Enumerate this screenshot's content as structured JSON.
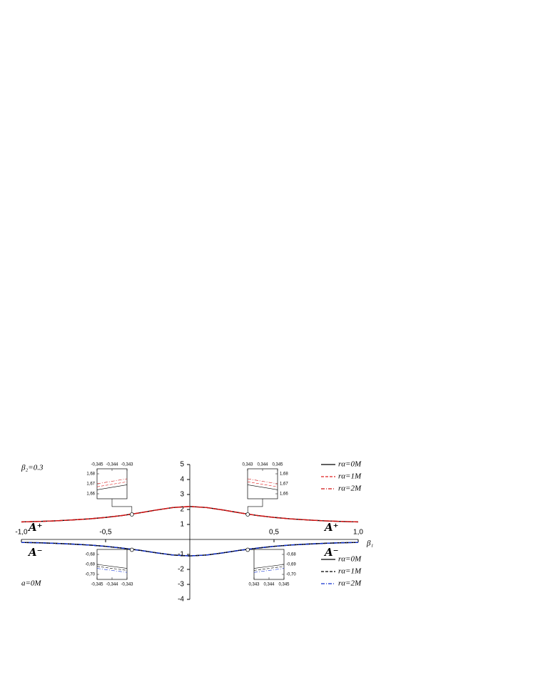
{
  "chart_data": [
    {
      "type": "line",
      "xlabel": "β₁",
      "annotations": {
        "beta2": "β₂=0.3",
        "spin": "a=0M",
        "upper": "A⁺",
        "lower": "A⁻"
      },
      "x": [
        -1,
        -0.9,
        -0.8,
        -0.7,
        -0.6,
        -0.5,
        -0.4,
        -0.3,
        -0.2,
        -0.1,
        0,
        0.1,
        0.2,
        0.3,
        0.4,
        0.5,
        0.6,
        0.7,
        0.8,
        0.9,
        1
      ],
      "series": [
        {
          "name": "rα=0M",
          "color": "#000000",
          "dash": "solid",
          "values": [
            1.17,
            1.2,
            1.24,
            1.3,
            1.37,
            1.47,
            1.6,
            1.77,
            1.96,
            2.13,
            2.2,
            2.13,
            1.96,
            1.77,
            1.6,
            1.47,
            1.37,
            1.3,
            1.24,
            1.2,
            1.17
          ]
        },
        {
          "name": "rα=1M",
          "color": "#e02020",
          "dash": "dashed",
          "values": [
            1.17,
            1.2,
            1.24,
            1.3,
            1.37,
            1.47,
            1.6,
            1.77,
            1.96,
            2.13,
            2.2,
            2.13,
            1.96,
            1.77,
            1.6,
            1.47,
            1.37,
            1.3,
            1.24,
            1.2,
            1.17
          ]
        },
        {
          "name": "rα=2M",
          "color": "#d01010",
          "dash": "dashdot",
          "values": [
            1.17,
            1.2,
            1.24,
            1.3,
            1.37,
            1.47,
            1.6,
            1.77,
            1.96,
            2.13,
            2.2,
            2.13,
            1.96,
            1.77,
            1.6,
            1.47,
            1.37,
            1.3,
            1.24,
            1.2,
            1.17
          ]
        },
        {
          "name": "rα=0M",
          "color": "#000000",
          "dash": "solid",
          "values": [
            -0.2,
            -0.22,
            -0.26,
            -0.31,
            -0.37,
            -0.46,
            -0.58,
            -0.72,
            -0.89,
            -1.04,
            -1.1,
            -1.04,
            -0.89,
            -0.72,
            -0.58,
            -0.46,
            -0.37,
            -0.31,
            -0.26,
            -0.22,
            -0.2
          ]
        },
        {
          "name": "rα=1M",
          "color": "#000000",
          "dash": "dashed",
          "values": [
            -0.2,
            -0.22,
            -0.26,
            -0.31,
            -0.37,
            -0.46,
            -0.58,
            -0.72,
            -0.89,
            -1.04,
            -1.1,
            -1.04,
            -0.89,
            -0.72,
            -0.58,
            -0.46,
            -0.37,
            -0.31,
            -0.26,
            -0.22,
            -0.2
          ]
        },
        {
          "name": "rα=2M",
          "color": "#1030d0",
          "dash": "dashdot",
          "values": [
            -0.2,
            -0.22,
            -0.26,
            -0.31,
            -0.37,
            -0.46,
            -0.58,
            -0.72,
            -0.89,
            -1.04,
            -1.1,
            -1.04,
            -0.89,
            -0.72,
            -0.58,
            -0.46,
            -0.37,
            -0.31,
            -0.26,
            -0.22,
            -0.2
          ]
        }
      ],
      "circles": [
        {
          "x": -0.344,
          "y": 1.67
        },
        {
          "x": 0.344,
          "y": 1.67
        },
        {
          "x": -0.344,
          "y": -0.69
        },
        {
          "x": 0.344,
          "y": -0.69
        }
      ],
      "xlim": [
        -1,
        1
      ],
      "ylim": [
        -4,
        5
      ],
      "xticks": [
        {
          "value": -1,
          "label": "-1,0"
        },
        {
          "value": -0.5,
          "label": "-0,5"
        },
        {
          "value": 0.5,
          "label": "0,5"
        },
        {
          "value": 1,
          "label": "1,0"
        }
      ],
      "yticks": [
        5,
        4,
        3,
        2,
        1,
        -1,
        -2,
        -3,
        -4
      ]
    },
    {
      "type": "line",
      "x": [
        -0.345,
        -0.343
      ],
      "xlim": [
        -0.345,
        -0.343
      ],
      "ylim": [
        1.655,
        1.685
      ],
      "xticks": [
        {
          "value": -0.345,
          "label": "-0,345"
        },
        {
          "value": -0.344,
          "label": "-0,344"
        },
        {
          "value": -0.343,
          "label": "-0,343"
        }
      ],
      "yticks": [
        {
          "value": 1.66,
          "label": "1,66"
        },
        {
          "value": 1.67,
          "label": "1,67"
        },
        {
          "value": 1.68,
          "label": "1,68"
        }
      ],
      "series": [
        {
          "color": "#000000",
          "dash": "solid",
          "values": [
            1.664,
            1.669
          ]
        },
        {
          "color": "#e02020",
          "dash": "dashed",
          "values": [
            1.667,
            1.672
          ]
        },
        {
          "color": "#d01010",
          "dash": "dashdot",
          "values": [
            1.67,
            1.675
          ]
        }
      ]
    },
    {
      "type": "line",
      "x": [
        0.343,
        0.345
      ],
      "xlim": [
        0.343,
        0.345
      ],
      "ylim": [
        1.655,
        1.685
      ],
      "xticks": [
        {
          "value": 0.343,
          "label": "0,343"
        },
        {
          "value": 0.344,
          "label": "0,344"
        },
        {
          "value": 0.345,
          "label": "0,345"
        }
      ],
      "yticks": [
        {
          "value": 1.66,
          "label": "1,66"
        },
        {
          "value": 1.67,
          "label": "1,67"
        },
        {
          "value": 1.68,
          "label": "1,68"
        }
      ],
      "series": [
        {
          "color": "#000000",
          "dash": "solid",
          "values": [
            1.669,
            1.664
          ]
        },
        {
          "color": "#e02020",
          "dash": "dashed",
          "values": [
            1.672,
            1.667
          ]
        },
        {
          "color": "#d01010",
          "dash": "dashdot",
          "values": [
            1.675,
            1.67
          ]
        }
      ]
    },
    {
      "type": "line",
      "x": [
        -0.345,
        -0.343
      ],
      "xlim": [
        -0.345,
        -0.343
      ],
      "ylim": [
        -0.705,
        -0.675
      ],
      "xticks": [
        {
          "value": -0.345,
          "label": "-0,345"
        },
        {
          "value": -0.344,
          "label": "-0,344"
        },
        {
          "value": -0.343,
          "label": "-0,343"
        }
      ],
      "yticks": [
        {
          "value": -0.68,
          "label": "-0,68"
        },
        {
          "value": -0.69,
          "label": "-0,69"
        },
        {
          "value": -0.7,
          "label": "-0,70"
        }
      ],
      "series": [
        {
          "color": "#000000",
          "dash": "solid",
          "values": [
            -0.69,
            -0.694
          ]
        },
        {
          "color": "#000000",
          "dash": "dashed",
          "values": [
            -0.692,
            -0.696
          ]
        },
        {
          "color": "#1030d0",
          "dash": "dashdot",
          "values": [
            -0.694,
            -0.698
          ]
        }
      ]
    },
    {
      "type": "line",
      "x": [
        0.343,
        0.345
      ],
      "xlim": [
        0.343,
        0.345
      ],
      "ylim": [
        -0.705,
        -0.675
      ],
      "xticks": [
        {
          "value": 0.343,
          "label": "0,343"
        },
        {
          "value": 0.344,
          "label": "0,344"
        },
        {
          "value": 0.345,
          "label": "0,345"
        }
      ],
      "yticks": [
        {
          "value": -0.68,
          "label": "-0,68"
        },
        {
          "value": -0.69,
          "label": "-0,69"
        },
        {
          "value": -0.7,
          "label": "-0,70"
        }
      ],
      "series": [
        {
          "color": "#000000",
          "dash": "solid",
          "values": [
            -0.694,
            -0.69
          ]
        },
        {
          "color": "#000000",
          "dash": "dashed",
          "values": [
            -0.696,
            -0.692
          ]
        },
        {
          "color": "#1030d0",
          "dash": "dashdot",
          "values": [
            -0.698,
            -0.694
          ]
        }
      ]
    }
  ]
}
